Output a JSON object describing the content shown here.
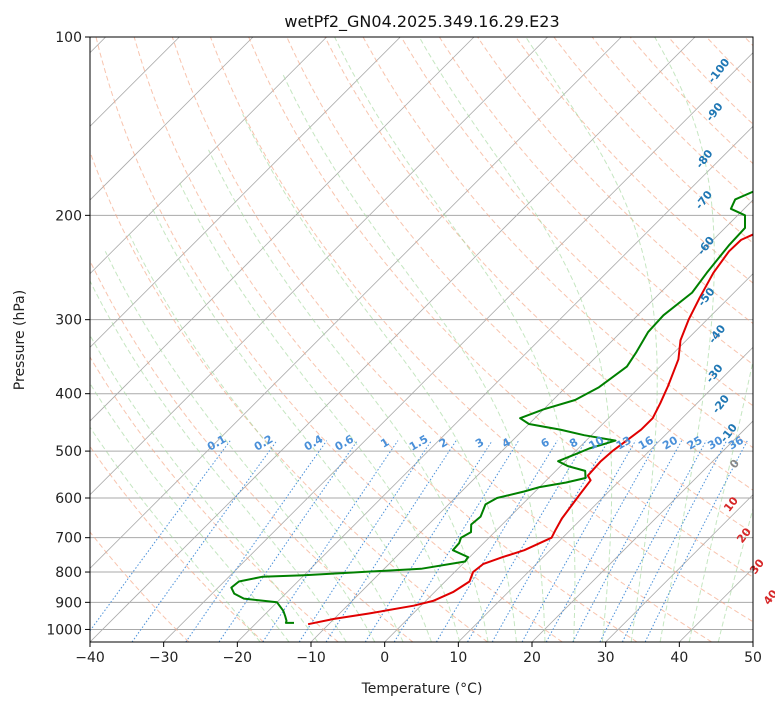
{
  "chart_data": {
    "type": "line",
    "title": "wetPf2_GN04.2025.349.16.29.E23",
    "xlabel": "Temperature (°C)",
    "ylabel": "Pressure (hPa)",
    "xlim": [
      -40,
      50
    ],
    "ylim": [
      1050,
      100
    ],
    "y_scale": "log",
    "x_ticks": [
      "−40",
      "−30",
      "−20",
      "−10",
      "0",
      "10",
      "20",
      "30",
      "40",
      "50"
    ],
    "x_tick_values": [
      -40,
      -30,
      -20,
      -10,
      0,
      10,
      20,
      30,
      40,
      50
    ],
    "y_ticks": [
      "100",
      "200",
      "300",
      "400",
      "500",
      "600",
      "700",
      "800",
      "900",
      "1000"
    ],
    "y_tick_values": [
      100,
      200,
      300,
      400,
      500,
      600,
      700,
      800,
      900,
      1000
    ],
    "colors": {
      "temperature": "#e00000",
      "dewpoint": "#008000",
      "isotherm": "#aaaaaa",
      "dry_adiabat": "#f4a582",
      "moist_adiabat": "#a6d8a0",
      "mixing_ratio": "#4a90d9",
      "label_blue": "#1f77b4",
      "label_red": "#d62728"
    },
    "series": [
      {
        "name": "Temperature",
        "color": "#e00000",
        "points": [
          [
            -12.8,
            980
          ],
          [
            -10,
            960
          ],
          [
            -6,
            940
          ],
          [
            -1,
            912
          ],
          [
            1,
            895
          ],
          [
            2.5,
            865
          ],
          [
            3.3,
            830
          ],
          [
            2.5,
            800
          ],
          [
            2.8,
            775
          ],
          [
            4.5,
            755
          ],
          [
            6.5,
            735
          ],
          [
            8.5,
            700
          ],
          [
            8,
            680
          ],
          [
            7.3,
            650
          ],
          [
            6.8,
            615
          ],
          [
            6.5,
            595
          ],
          [
            6,
            560
          ],
          [
            5,
            550
          ],
          [
            4.8,
            520
          ],
          [
            5,
            500
          ],
          [
            5.5,
            480
          ],
          [
            6,
            460
          ],
          [
            6,
            440
          ],
          [
            5,
            415
          ],
          [
            3.7,
            388
          ],
          [
            1.5,
            350
          ],
          [
            -0.8,
            325
          ],
          [
            -2.5,
            300
          ],
          [
            -4,
            275
          ],
          [
            -5.5,
            250
          ],
          [
            -6.3,
            230
          ],
          [
            -6.2,
            220
          ],
          [
            -3.8,
            208
          ],
          [
            -0.8,
            200
          ],
          [
            2.5,
            190
          ],
          [
            6,
            180
          ],
          [
            10,
            168
          ],
          [
            15,
            155
          ],
          [
            18.5,
            148
          ],
          [
            20.5,
            140
          ],
          [
            21.5,
            130
          ],
          [
            21.6,
            120
          ],
          [
            20.8,
            110
          ],
          [
            21,
            105
          ],
          [
            22,
            100
          ]
        ]
      },
      {
        "name": "Dewpoint",
        "color": "#008000",
        "points": [
          [
            -14.9,
            975
          ],
          [
            -16,
            975
          ],
          [
            -16.2,
            967
          ],
          [
            -17,
            950
          ],
          [
            -18,
            930
          ],
          [
            -20,
            900
          ],
          [
            -25,
            887
          ],
          [
            -27,
            870
          ],
          [
            -28.2,
            850
          ],
          [
            -28,
            830
          ],
          [
            -25.5,
            815
          ],
          [
            -20,
            810
          ],
          [
            -5,
            790
          ],
          [
            0,
            768
          ],
          [
            -0.2,
            755
          ],
          [
            -3.2,
            735
          ],
          [
            -3.3,
            715
          ],
          [
            -3.8,
            700
          ],
          [
            -3.2,
            685
          ],
          [
            -4.2,
            665
          ],
          [
            -4,
            645
          ],
          [
            -5,
            615
          ],
          [
            -4.3,
            600
          ],
          [
            -1.5,
            585
          ],
          [
            0,
            575
          ],
          [
            3,
            565
          ],
          [
            5,
            555
          ],
          [
            4,
            540
          ],
          [
            1,
            530
          ],
          [
            -1,
            520
          ],
          [
            0.5,
            505
          ],
          [
            1.5,
            495
          ],
          [
            4,
            480
          ],
          [
            -1,
            470
          ],
          [
            -5,
            460
          ],
          [
            -10,
            450
          ],
          [
            -12,
            440
          ],
          [
            -10,
            425
          ],
          [
            -7,
            410
          ],
          [
            -5.5,
            390
          ],
          [
            -4.5,
            360
          ],
          [
            -5.2,
            340
          ],
          [
            -6.3,
            315
          ],
          [
            -6.5,
            295
          ],
          [
            -5.7,
            270
          ],
          [
            -6.4,
            250
          ],
          [
            -7.1,
            225
          ],
          [
            -7.3,
            210
          ],
          [
            -9,
            200
          ],
          [
            -11.8,
            195
          ],
          [
            -12.5,
            188
          ],
          [
            -10.5,
            180
          ],
          [
            -10.5,
            170
          ],
          [
            -12.5,
            162
          ],
          [
            -16,
            150
          ],
          [
            -16.5,
            144
          ],
          [
            -15,
            140
          ],
          [
            -13,
            135
          ],
          [
            -12,
            120
          ],
          [
            -10,
            112
          ],
          [
            -6,
            105
          ],
          [
            -3,
            100
          ]
        ]
      }
    ],
    "mixing_ratio_labels": [
      "0.1",
      "0.2",
      "0.4",
      "0.6",
      "1",
      "1.5",
      "2",
      "3",
      "4",
      "6",
      "8",
      "10",
      "13",
      "16",
      "20",
      "25",
      "30",
      "36"
    ],
    "mixing_ratio_values": [
      0.1,
      0.2,
      0.4,
      0.6,
      1,
      1.5,
      2,
      3,
      4,
      6,
      8,
      10,
      13,
      16,
      20,
      25,
      30,
      36
    ],
    "dry_adiabat_labels": [
      "-100",
      "-90",
      "-80",
      "-70",
      "-60",
      "-50",
      "-40",
      "-30",
      "-20",
      "-10",
      "0",
      "10",
      "20",
      "30",
      "40"
    ],
    "dry_adiabat_label_positions": [
      [
        -31.5,
        115
      ],
      [
        -26.5,
        135
      ],
      [
        -21.5,
        162
      ],
      [
        -16,
        190
      ],
      [
        -9.5,
        227
      ],
      [
        -2.5,
        277
      ],
      [
        4,
        320
      ],
      [
        9,
        373
      ],
      [
        14,
        420
      ],
      [
        19,
        470
      ],
      [
        24,
        530
      ],
      [
        29,
        620
      ],
      [
        35,
        700
      ],
      [
        41,
        790
      ],
      [
        47,
        890
      ]
    ]
  }
}
